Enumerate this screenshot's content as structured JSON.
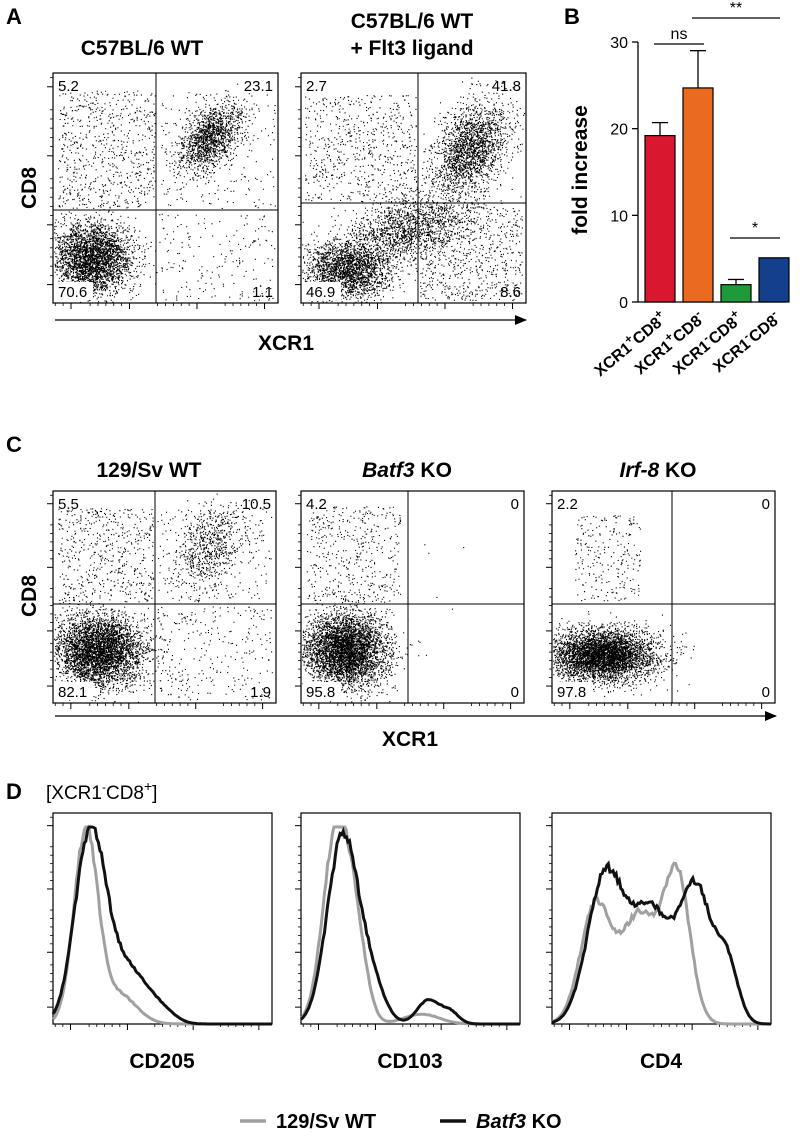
{
  "panels": {
    "A": {
      "label": "A",
      "plots": [
        {
          "title_lines": [
            "C57BL/6 WT"
          ],
          "quadrants": {
            "ul": "5.2",
            "ur": "23.1",
            "ll": "70.6",
            "lr": "1.1"
          }
        },
        {
          "title_lines": [
            "C57BL/6 WT",
            "+ Flt3 ligand"
          ],
          "quadrants": {
            "ul": "2.7",
            "ur": "41.8",
            "ll": "46.9",
            "lr": "8.6"
          }
        }
      ],
      "ylabel": "CD8",
      "xlabel": "XCR1"
    },
    "B": {
      "label": "B",
      "significance": {
        "ns": "ns",
        "double": "**",
        "single": "*"
      }
    },
    "C": {
      "label": "C",
      "plots": [
        {
          "title": "129/Sv WT",
          "title_italic": "",
          "title_rest": "",
          "quadrants": {
            "ul": "5.5",
            "ur": "10.5",
            "ll": "82.1",
            "lr": "1.9"
          }
        },
        {
          "title": "",
          "title_italic": "Batf3",
          "title_rest": " KO",
          "quadrants": {
            "ul": "4.2",
            "ur": "0",
            "ll": "95.8",
            "lr": "0"
          }
        },
        {
          "title": "",
          "title_italic": "Irf-8",
          "title_rest": " KO",
          "quadrants": {
            "ul": "2.2",
            "ur": "0",
            "ll": "97.8",
            "lr": "0"
          }
        }
      ],
      "ylabel": "CD8",
      "xlabel": "XCR1"
    },
    "D": {
      "label": "D",
      "gate": {
        "open": "[XCR1",
        "sup1": "-",
        "mid": "CD8",
        "sup2": "+",
        "close": "]"
      },
      "histograms": [
        {
          "marker": "CD205"
        },
        {
          "marker": "CD103"
        },
        {
          "marker": "CD4"
        }
      ],
      "legend": [
        {
          "name": "129/Sv WT",
          "italic": "",
          "rest": "",
          "color": "#a0a0a0"
        },
        {
          "name": "",
          "italic": "Batf3",
          "rest": " KO",
          "color": "#111111"
        }
      ]
    }
  },
  "chart_data": {
    "type": "bar",
    "ylabel": "fold increase",
    "ylim": [
      0,
      30
    ],
    "yticks": [
      0,
      10,
      20,
      30
    ],
    "categories": [
      {
        "base": "XCR1",
        "s1": "+",
        "mid": "CD8",
        "s2": "+"
      },
      {
        "base": "XCR1",
        "s1": "+",
        "mid": "CD8",
        "s2": "-"
      },
      {
        "base": "XCR1",
        "s1": "-",
        "mid": "CD8",
        "s2": "+"
      },
      {
        "base": "XCR1",
        "s1": "-",
        "mid": "CD8",
        "s2": "-"
      }
    ],
    "values": [
      19.2,
      24.7,
      2.0,
      5.1
    ],
    "errors": [
      1.5,
      4.3,
      0.6,
      0.0
    ],
    "colors": [
      "#d9172e",
      "#ea6a1f",
      "#1f9a38",
      "#143f8c"
    ],
    "comparisons": [
      {
        "from": 0,
        "to": 1,
        "label": "ns"
      },
      {
        "from": 1,
        "to": 3,
        "label": "**"
      },
      {
        "from": 2,
        "to": 3,
        "label": "*"
      }
    ]
  }
}
